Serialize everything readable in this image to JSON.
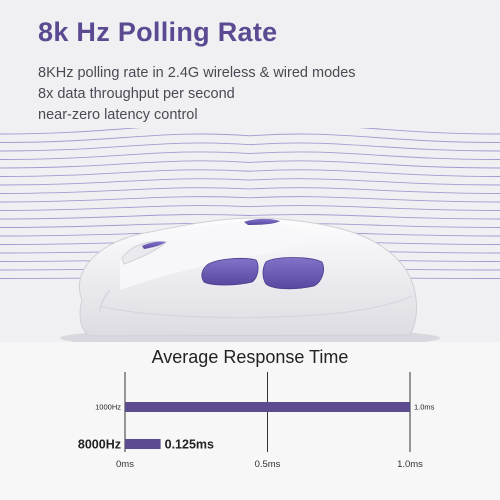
{
  "header": {
    "title": "8k Hz Polling Rate",
    "lines": [
      "8KHz polling rate in 2.4G wireless & wired modes",
      "8x data throughput per second",
      "near-zero latency control"
    ]
  },
  "colors": {
    "accent": "#5b4a92",
    "bar": "#5c4b8f",
    "wave": "#8a7fc4",
    "mouse_button": "#6a58b0"
  },
  "chart_data": {
    "type": "bar",
    "orientation": "horizontal",
    "title": "Average Response Time",
    "categories": [
      "1000Hz",
      "8000Hz"
    ],
    "values": [
      1.0,
      0.125
    ],
    "value_labels": [
      "1.0ms",
      "0.125ms"
    ],
    "xticks": [
      "0ms",
      "0.5ms",
      "1.0ms"
    ],
    "xtick_values": [
      0,
      0.5,
      1.0
    ],
    "xlim": [
      0,
      1.0
    ],
    "grid": true
  }
}
